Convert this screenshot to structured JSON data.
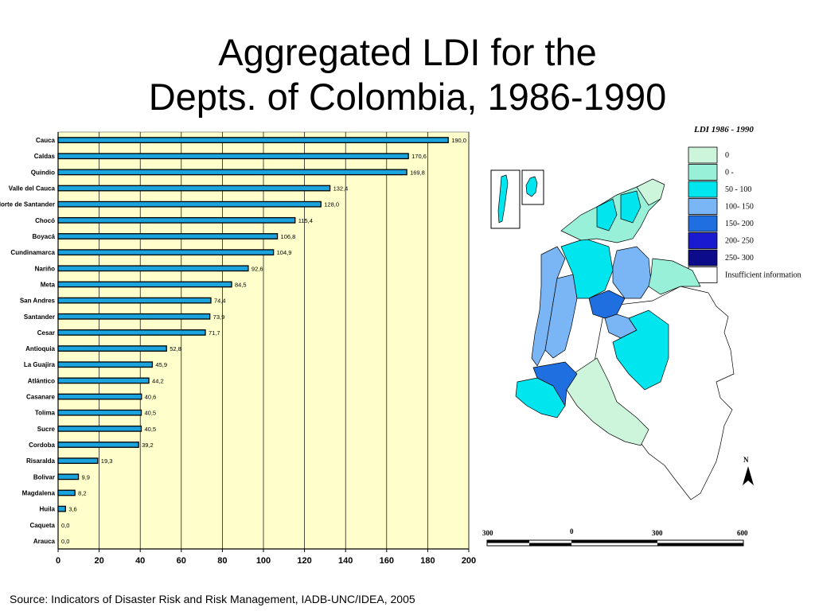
{
  "title": {
    "line1": "Aggregated LDI for the",
    "line2": "Depts. of Colombia, 1986-1990"
  },
  "source": "Source: Indicators of Disaster Risk and Risk Management, IADB-UNC/IDEA, 2005",
  "chart_data": {
    "type": "bar",
    "orientation": "horizontal",
    "categories": [
      "Cauca",
      "Caldas",
      "Quindio",
      "Valle del Cauca",
      "Norte de Santander",
      "Chocó",
      "Boyacá",
      "Cundinamarca",
      "Nariño",
      "Meta",
      "San Andres",
      "Santander",
      "Cesar",
      "Antioquia",
      "La Guajira",
      "Atlántico",
      "Casanare",
      "Tolima",
      "Sucre",
      "Cordoba",
      "Risaralda",
      "Bolivar",
      "Magdalena",
      "Huila",
      "Caqueta",
      "Arauca"
    ],
    "values": [
      190.0,
      170.6,
      169.8,
      132.4,
      128.0,
      115.4,
      106.8,
      104.9,
      92.6,
      84.5,
      74.4,
      73.9,
      71.7,
      52.8,
      45.9,
      44.2,
      40.6,
      40.5,
      40.5,
      39.2,
      19.3,
      9.9,
      8.2,
      3.6,
      0.0,
      0.0
    ],
    "value_labels": [
      "190,0",
      "170,6",
      "169,8",
      "132,4",
      "128,0",
      "115,4",
      "106,8",
      "104,9",
      "92,6",
      "84,5",
      "74,4",
      "73,9",
      "71,7",
      "52,8",
      "45,9",
      "44,2",
      "40,6",
      "40,5",
      "40,5",
      "39,2",
      "19,3",
      "9,9",
      "8,2",
      "3,6",
      "0,0",
      "0,0"
    ],
    "x_ticks": [
      "0",
      "20",
      "40",
      "60",
      "80",
      "100",
      "120",
      "140",
      "160",
      "180",
      "200"
    ],
    "xlim": [
      0,
      200
    ],
    "xlabel": "",
    "ylabel": "",
    "grid": "vertical",
    "colors": {
      "bar": "#1aa3dc",
      "bar_edge": "#000000",
      "plot_bg": "#ffffcc",
      "grid": "#000000"
    }
  },
  "map": {
    "title": "LDI   1986 - 1990",
    "legend": [
      {
        "label": "0",
        "color": "#ccf5dc"
      },
      {
        "label": "0 -",
        "color": "#99f0d8"
      },
      {
        "label": "50 - 100",
        "color": "#00e5ee"
      },
      {
        "label": "100- 150",
        "color": "#7ab6f5"
      },
      {
        "label": "150- 200",
        "color": "#1f6fe0"
      },
      {
        "label": "200- 250",
        "color": "#1a1ad0"
      },
      {
        "label": "250- 300",
        "color": "#0c0c8a"
      },
      {
        "label": "Insufficient information",
        "color": "#ffffff"
      }
    ],
    "north": "N",
    "scale": [
      "300",
      "0",
      "300",
      "600"
    ]
  }
}
